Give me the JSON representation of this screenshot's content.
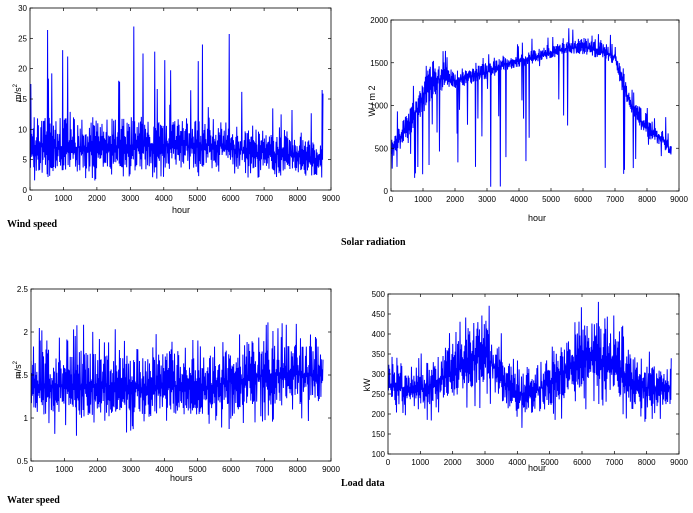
{
  "chart_data": [
    {
      "id": "wind",
      "type": "line",
      "caption": "Wind speed",
      "xlabel": "hour",
      "ylabel": "m/s",
      "ylabel_sup": "2",
      "xlim": [
        0,
        9000
      ],
      "ylim": [
        0,
        30
      ],
      "xticks": [
        0,
        1000,
        2000,
        3000,
        4000,
        5000,
        6000,
        7000,
        8000,
        9000
      ],
      "yticks": [
        0,
        5,
        10,
        15,
        20,
        25,
        30
      ],
      "line_color": "#0000ff",
      "grid": false,
      "data_x_end": 8760,
      "series": [
        {
          "x": [
            0,
            500,
            1000,
            1500,
            2000,
            2500,
            3000,
            3500,
            4000,
            4500,
            5000,
            5500,
            6000,
            6500,
            7000,
            7500,
            8000,
            8500,
            8760
          ],
          "min": [
            1,
            2,
            1.5,
            1,
            1.5,
            1.5,
            2,
            2,
            1.5,
            2,
            2,
            1.5,
            2,
            2,
            2,
            2,
            2,
            2,
            2
          ],
          "typ_low": [
            3,
            3,
            3,
            3,
            3,
            3.5,
            3.5,
            3.5,
            3.5,
            3.5,
            3.5,
            3.5,
            3.5,
            3.5,
            3,
            3,
            3,
            3,
            3
          ],
          "typ_high": [
            13,
            12,
            12,
            12,
            12,
            12,
            12,
            12,
            12,
            12,
            12,
            12,
            11,
            10,
            10,
            9,
            9,
            8,
            8
          ],
          "peaks": [
            26,
            29,
            24,
            23,
            27,
            25,
            29.5,
            28,
            24,
            25,
            26,
            24,
            26,
            19,
            20,
            16,
            17,
            17,
            18
          ]
        }
      ]
    },
    {
      "id": "solar",
      "type": "line",
      "caption": "Solar radiation",
      "xlabel": "hour",
      "ylabel": "W / m 2",
      "xlim": [
        0,
        9000
      ],
      "ylim": [
        0,
        2000
      ],
      "xticks": [
        0,
        1000,
        2000,
        3000,
        4000,
        5000,
        6000,
        7000,
        8000,
        9000
      ],
      "yticks": [
        0,
        500,
        1000,
        1500,
        2000
      ],
      "line_color": "#0000ff",
      "grid": false,
      "data_x_end": 8760,
      "series": [
        {
          "x": [
            0,
            500,
            1000,
            1300,
            1500,
            2000,
            2500,
            3000,
            3500,
            4000,
            4500,
            5000,
            5500,
            6000,
            6500,
            7000,
            7200,
            7500,
            8000,
            8500,
            8760
          ],
          "min": [
            0,
            0,
            0,
            0,
            0,
            0,
            0,
            0,
            0,
            0,
            0,
            0,
            0,
            0,
            0,
            0,
            0,
            0,
            0,
            0,
            0
          ],
          "typ_low": [
            400,
            600,
            900,
            1100,
            1150,
            1200,
            1250,
            1300,
            1400,
            1450,
            1500,
            1550,
            1600,
            1600,
            1550,
            1450,
            1200,
            900,
            600,
            500,
            400
          ],
          "typ_high": [
            600,
            900,
            1300,
            1600,
            1500,
            1400,
            1450,
            1500,
            1550,
            1600,
            1650,
            1700,
            1750,
            1800,
            1750,
            1700,
            1400,
            1100,
            900,
            700,
            550
          ],
          "peaks": [
            900,
            1200,
            1600,
            1950,
            1750,
            1500,
            1550,
            1650,
            1700,
            1750,
            1800,
            1850,
            1950,
            1900,
            1900,
            1850,
            1500,
            1200,
            1000,
            1100,
            700
          ]
        }
      ]
    },
    {
      "id": "water",
      "type": "line",
      "caption": "Water speed",
      "xlabel": "hours",
      "ylabel": "m/s",
      "ylabel_sup": "2",
      "xlim": [
        0,
        9000
      ],
      "ylim": [
        0.5,
        2.5
      ],
      "xticks": [
        0,
        1000,
        2000,
        3000,
        4000,
        5000,
        6000,
        7000,
        8000,
        9000
      ],
      "yticks": [
        0.5,
        1,
        1.5,
        2,
        2.5
      ],
      "line_color": "#0000ff",
      "grid": false,
      "data_x_end": 8760,
      "series": [
        {
          "x": [
            0,
            500,
            1000,
            1500,
            2000,
            2500,
            3000,
            3500,
            4000,
            4500,
            5000,
            5500,
            6000,
            6500,
            7000,
            7500,
            8000,
            8500,
            8760
          ],
          "min": [
            0.85,
            0.75,
            0.8,
            0.7,
            0.75,
            0.8,
            0.8,
            0.8,
            0.75,
            0.8,
            0.6,
            0.8,
            0.85,
            0.9,
            0.9,
            0.95,
            0.9,
            0.95,
            1.0
          ],
          "typ_low": [
            1.0,
            1.05,
            1.05,
            1.0,
            1.05,
            1.05,
            1.05,
            1.0,
            1.05,
            1.05,
            1.0,
            1.05,
            1.1,
            1.1,
            1.15,
            1.15,
            1.2,
            1.2,
            1.2
          ],
          "typ_high": [
            1.8,
            1.8,
            1.75,
            1.8,
            1.75,
            1.75,
            1.75,
            1.7,
            1.75,
            1.75,
            1.7,
            1.75,
            1.85,
            1.9,
            1.9,
            1.95,
            1.9,
            1.9,
            1.85
          ],
          "peaks": [
            2.1,
            2.0,
            1.95,
            2.15,
            1.95,
            2.05,
            1.9,
            2.1,
            1.95,
            1.9,
            1.95,
            1.9,
            2.05,
            2.1,
            2.1,
            2.2,
            2.15,
            2.0,
            2.05
          ]
        }
      ]
    },
    {
      "id": "load",
      "type": "line",
      "caption": "Load data",
      "xlabel": "hour",
      "ylabel": "kW",
      "xlim": [
        0,
        9000
      ],
      "ylim": [
        100,
        500
      ],
      "xticks": [
        0,
        1000,
        2000,
        3000,
        4000,
        5000,
        6000,
        7000,
        8000,
        9000
      ],
      "yticks": [
        100,
        150,
        200,
        250,
        300,
        350,
        400,
        450,
        500
      ],
      "line_color": "#0000ff",
      "grid": false,
      "data_x_end": 8760,
      "series": [
        {
          "x": [
            0,
            500,
            1000,
            1500,
            2000,
            2500,
            3000,
            3500,
            4000,
            4500,
            5000,
            5500,
            6000,
            6500,
            7000,
            7500,
            8000,
            8500,
            8760
          ],
          "min": [
            200,
            185,
            180,
            180,
            185,
            195,
            210,
            180,
            150,
            150,
            160,
            170,
            190,
            200,
            190,
            175,
            175,
            185,
            190
          ],
          "typ_low": [
            230,
            220,
            215,
            225,
            240,
            260,
            280,
            230,
            200,
            200,
            215,
            240,
            265,
            270,
            250,
            225,
            215,
            220,
            225
          ],
          "typ_high": [
            330,
            320,
            320,
            340,
            380,
            420,
            440,
            360,
            300,
            320,
            350,
            390,
            420,
            430,
            400,
            360,
            330,
            320,
            320
          ],
          "peaks": [
            360,
            350,
            355,
            380,
            420,
            470,
            500,
            420,
            350,
            360,
            400,
            440,
            470,
            500,
            460,
            400,
            370,
            360,
            370
          ]
        }
      ]
    }
  ]
}
